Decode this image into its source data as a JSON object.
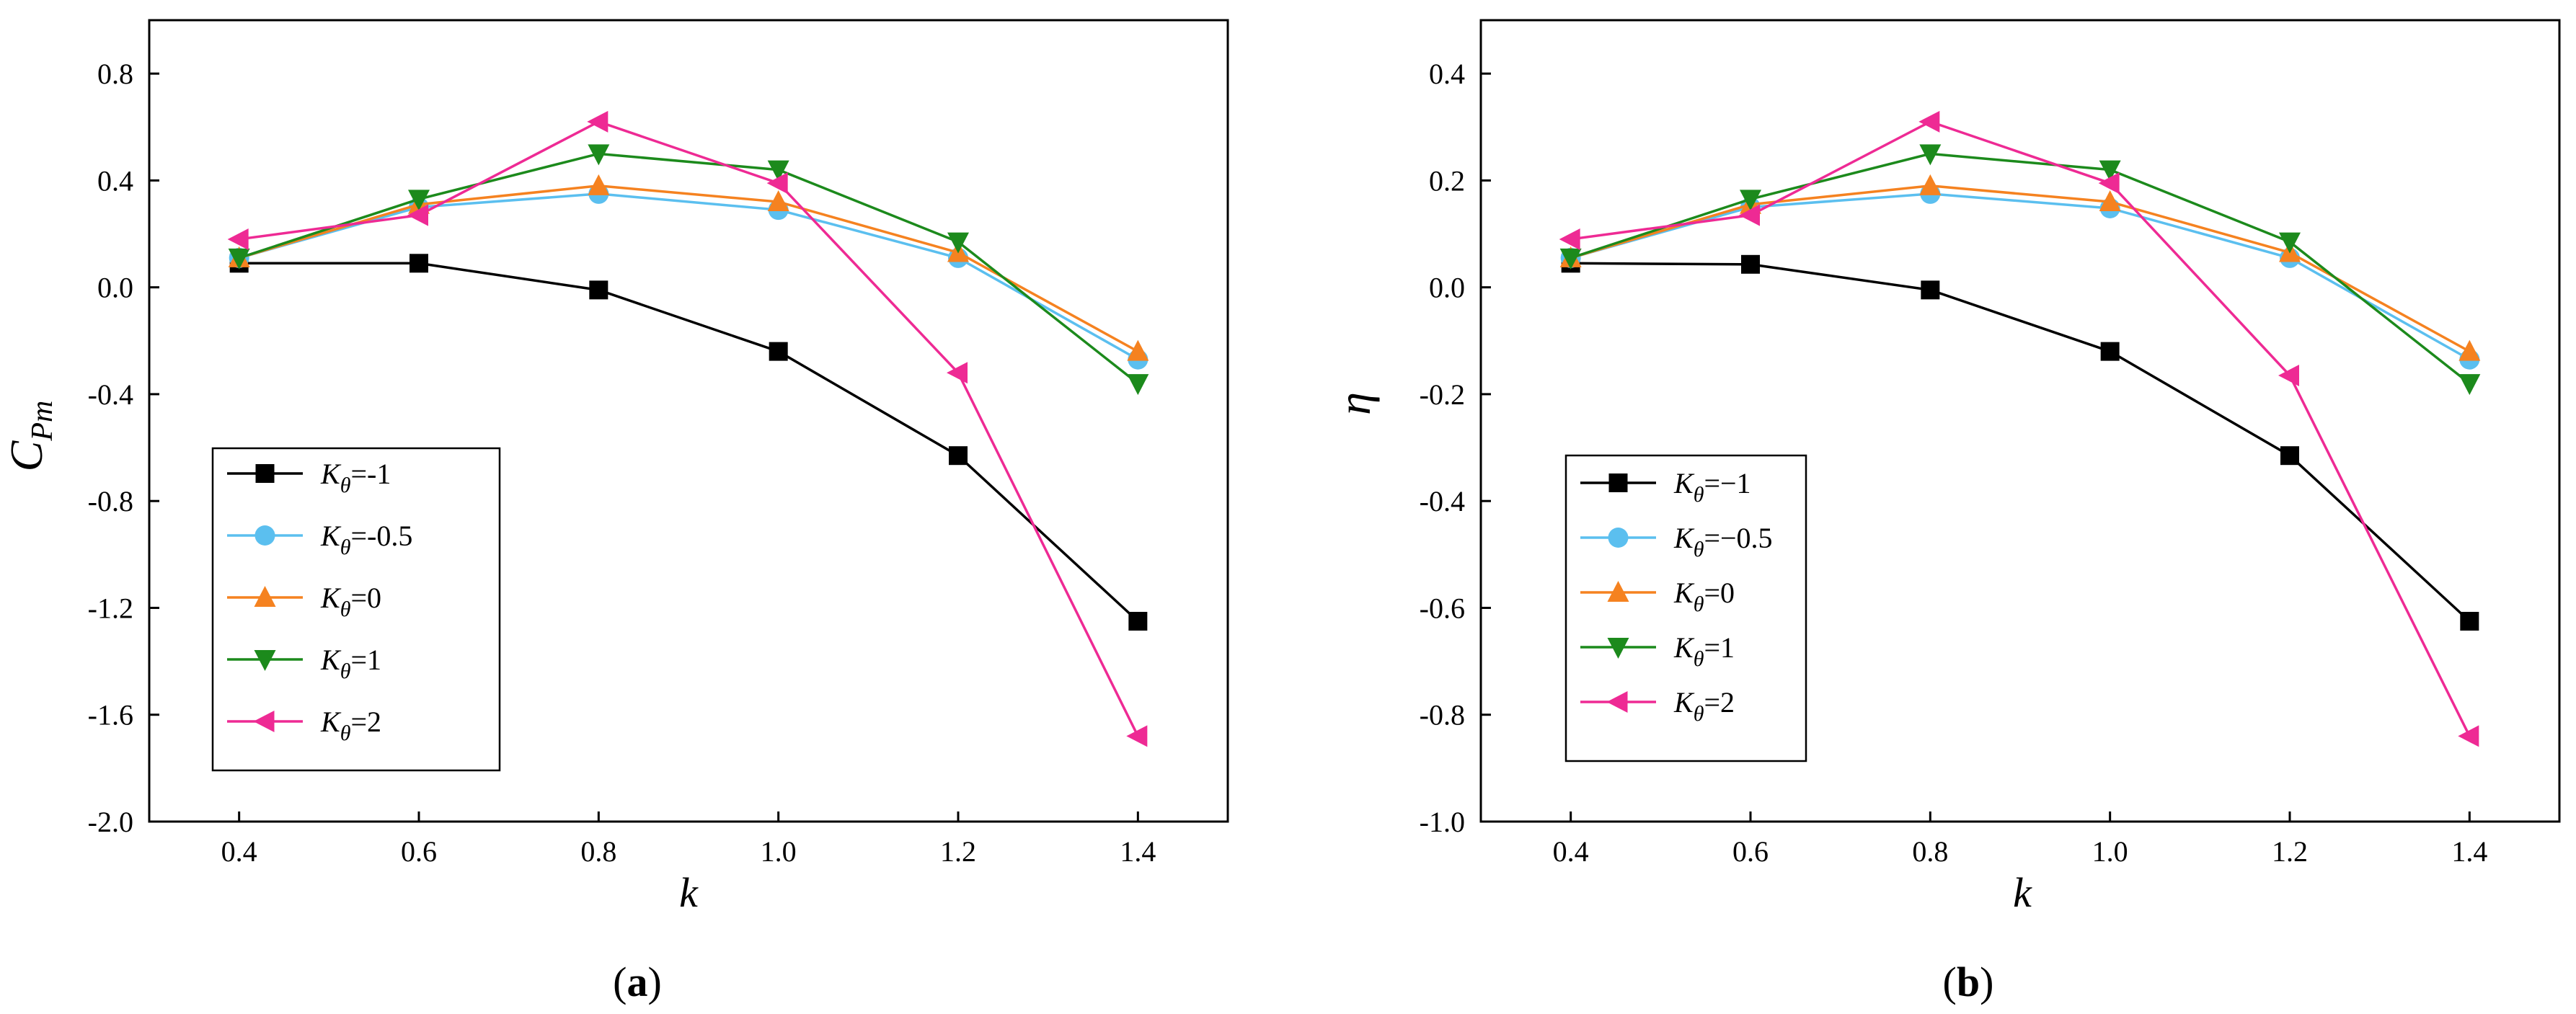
{
  "chart_data": [
    {
      "type": "line",
      "panel_label": "a",
      "xlabel": "k",
      "ylabel": "C",
      "ylabel_sub": "Pm",
      "x": [
        0.4,
        0.6,
        0.8,
        1.0,
        1.2,
        1.4
      ],
      "xlim": [
        0.3,
        1.5
      ],
      "ylim": [
        -2.0,
        1.0
      ],
      "x_ticks": [
        0.4,
        0.6,
        0.8,
        1.0,
        1.2,
        1.4
      ],
      "x_tick_labels": [
        "0.4",
        "0.6",
        "0.8",
        "1.0",
        "1.2",
        "1.4"
      ],
      "y_ticks": [
        -2.0,
        -1.6,
        -1.2,
        -0.8,
        -0.4,
        0.0,
        0.4,
        0.8
      ],
      "y_tick_labels": [
        "-2.0",
        "-1.6",
        "-1.2",
        "-0.8",
        "-0.4",
        "0.0",
        "0.4",
        "0.8"
      ],
      "legend_position": "bottom-left",
      "grid": false,
      "series": [
        {
          "name": "Kθ=-1",
          "sym": "K",
          "sub": "θ",
          "val": "=-1",
          "color": "#000000",
          "marker": "square",
          "values": [
            0.09,
            0.09,
            -0.01,
            -0.24,
            -0.63,
            -1.25
          ]
        },
        {
          "name": "Kθ=-0.5",
          "sym": "K",
          "sub": "θ",
          "val": "=-0.5",
          "color": "#5bbfef",
          "marker": "circle",
          "values": [
            0.11,
            0.3,
            0.35,
            0.29,
            0.11,
            -0.27
          ]
        },
        {
          "name": "Kθ=0",
          "sym": "K",
          "sub": "θ",
          "val": "=0",
          "color": "#f58220",
          "marker": "triangle-up",
          "values": [
            0.11,
            0.31,
            0.38,
            0.32,
            0.13,
            -0.24
          ]
        },
        {
          "name": "Kθ=1",
          "sym": "K",
          "sub": "θ",
          "val": "=1",
          "color": "#1c8a1c",
          "marker": "triangle-down",
          "values": [
            0.11,
            0.33,
            0.5,
            0.44,
            0.17,
            -0.36
          ]
        },
        {
          "name": "Kθ=2",
          "sym": "K",
          "sub": "θ",
          "val": "=2",
          "color": "#ee2a94",
          "marker": "triangle-left",
          "values": [
            0.18,
            0.27,
            0.62,
            0.39,
            -0.32,
            -1.68
          ]
        }
      ]
    },
    {
      "type": "line",
      "panel_label": "b",
      "xlabel": "k",
      "ylabel": "η",
      "ylabel_sub": "",
      "x": [
        0.4,
        0.6,
        0.8,
        1.0,
        1.2,
        1.4
      ],
      "xlim": [
        0.3,
        1.5
      ],
      "ylim": [
        -1.0,
        0.5
      ],
      "x_ticks": [
        0.4,
        0.6,
        0.8,
        1.0,
        1.2,
        1.4
      ],
      "x_tick_labels": [
        "0.4",
        "0.6",
        "0.8",
        "1.0",
        "1.2",
        "1.4"
      ],
      "y_ticks": [
        -1.0,
        -0.8,
        -0.6,
        -0.4,
        -0.2,
        0.0,
        0.2,
        0.4
      ],
      "y_tick_labels": [
        "-1.0",
        "-0.8",
        "-0.6",
        "-0.4",
        "-0.2",
        "0.0",
        "0.2",
        "0.4"
      ],
      "legend_position": "bottom-left",
      "grid": false,
      "series": [
        {
          "name": "Kθ=−1",
          "sym": "K",
          "sub": "θ",
          "val": "=−1",
          "color": "#000000",
          "marker": "square",
          "values": [
            0.045,
            0.043,
            -0.005,
            -0.12,
            -0.315,
            -0.625
          ]
        },
        {
          "name": "Kθ=−0.5",
          "sym": "K",
          "sub": "θ",
          "val": "=−0.5",
          "color": "#5bbfef",
          "marker": "circle",
          "values": [
            0.055,
            0.15,
            0.175,
            0.148,
            0.055,
            -0.135
          ]
        },
        {
          "name": "Kθ=0",
          "sym": "K",
          "sub": "θ",
          "val": "=0",
          "color": "#f58220",
          "marker": "triangle-up",
          "values": [
            0.055,
            0.155,
            0.19,
            0.16,
            0.065,
            -0.12
          ]
        },
        {
          "name": "Kθ=1",
          "sym": "K",
          "sub": "θ",
          "val": "=1",
          "color": "#1c8a1c",
          "marker": "triangle-down",
          "values": [
            0.055,
            0.165,
            0.25,
            0.22,
            0.085,
            -0.18
          ]
        },
        {
          "name": "Kθ=2",
          "sym": "K",
          "sub": "θ",
          "val": "=2",
          "color": "#ee2a94",
          "marker": "triangle-left",
          "values": [
            0.09,
            0.135,
            0.31,
            0.195,
            -0.165,
            -0.84
          ]
        }
      ]
    }
  ]
}
